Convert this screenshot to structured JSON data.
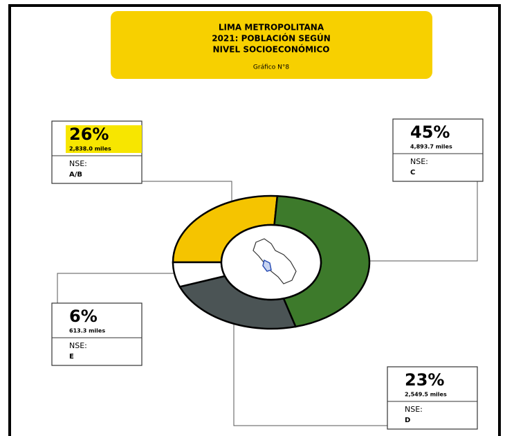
{
  "chart_data": {
    "type": "pie",
    "title_lines": [
      "LIMA METROPOLITANA",
      "2021: POBLACIÓN SEGÚN",
      "NIVEL SOCIOECONÓMICO"
    ],
    "subtitle": "Gráfico N°8",
    "categories": [
      "A/B",
      "C",
      "D",
      "E"
    ],
    "values": [
      26,
      45,
      23,
      6
    ],
    "value_labels": [
      "26%",
      "45%",
      "23%",
      "6%"
    ],
    "population_labels": [
      "2,838.0 miles",
      "4,893.7 miles",
      "2,549.5 miles",
      "613.3 miles"
    ],
    "category_prefix": "NSE:",
    "colors": [
      "#f5c400",
      "#3d7a2b",
      "#4b5455",
      "#ffffff"
    ]
  }
}
